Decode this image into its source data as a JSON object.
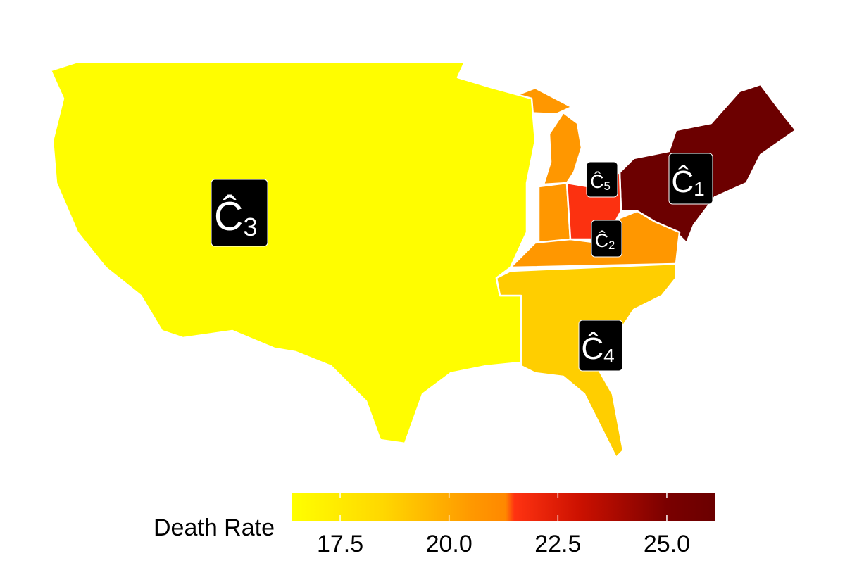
{
  "legend": {
    "title": "Death Rate",
    "range": [
      16.4,
      26.1
    ],
    "ticks": [
      17.5,
      {
        "value": 20,
        "label": "20.0"
      },
      22.5,
      {
        "value": 25,
        "label": "25.0"
      }
    ],
    "colorscale": [
      [
        16.4,
        "#ffff00"
      ],
      [
        18.5,
        "#ffd700"
      ],
      [
        20.5,
        "#ff9900"
      ],
      [
        21.3,
        "#ff8800"
      ],
      [
        21.5,
        "#ff3311"
      ],
      [
        23,
        "#cc1100"
      ],
      [
        25,
        "#7a0000"
      ],
      [
        26.1,
        "#6b0000"
      ]
    ]
  },
  "regions": [
    {
      "letter": "Ĉ",
      "subscript": "1",
      "rate": 26
    },
    {
      "letter": "Ĉ",
      "subscript": "2",
      "rate": 20.6
    },
    {
      "letter": "Ĉ",
      "subscript": "3",
      "rate": 16.5
    },
    {
      "letter": "Ĉ",
      "subscript": "4",
      "rate": 18.8
    },
    {
      "letter": "Ĉ",
      "subscript": "5",
      "rate": 21.6
    }
  ]
}
